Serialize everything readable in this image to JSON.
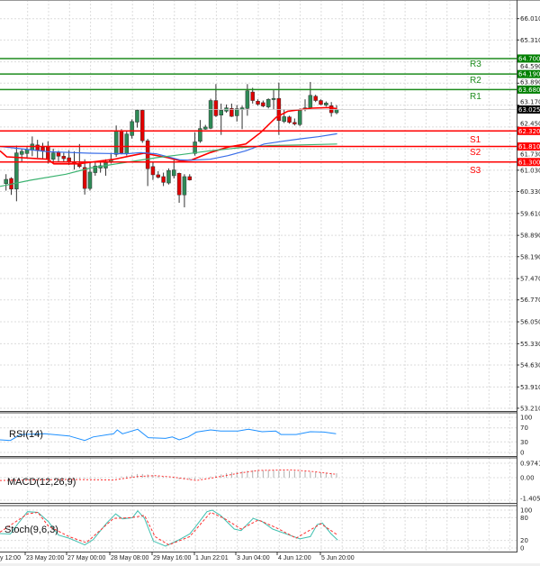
{
  "chart_data": {
    "type": "candlestick",
    "title": "",
    "x_labels": [
      "y 12:00",
      "23 May 20:00",
      "27 May 00:00",
      "28 May 08:00",
      "29 May 16:00",
      "1 Jun 22:01",
      "3 Jun 04:00",
      "4 Jun 12:00",
      "5 Jun 20:00"
    ],
    "price_axis": {
      "ylim": [
        53.21,
        66.01
      ],
      "ticks": [
        "66.010",
        "65.310",
        "64.590",
        "63.890",
        "63.170",
        "62.450",
        "61.730",
        "61.030",
        "60.330",
        "59.610",
        "58.890",
        "58.190",
        "57.470",
        "56.770",
        "56.050",
        "55.330",
        "54.630",
        "53.910",
        "53.210"
      ]
    },
    "current_price": {
      "value": 63.025,
      "label": "63.025"
    },
    "levels": [
      {
        "name": "R3",
        "value": 64.7,
        "label": "64.700",
        "color": "#1e8c1e"
      },
      {
        "name": "R2",
        "value": 64.19,
        "label": "64.190",
        "color": "#1e8c1e"
      },
      {
        "name": "R1",
        "value": 63.68,
        "label": "63.680",
        "color": "#1e8c1e"
      },
      {
        "name": "S1",
        "value": 62.32,
        "label": "62.320",
        "color": "#ff0000"
      },
      {
        "name": "S2",
        "value": 61.81,
        "label": "61.810",
        "color": "#ff0000"
      },
      {
        "name": "S3",
        "value": 61.3,
        "label": "61.300",
        "color": "#ff0000"
      }
    ],
    "candles_ohlc": [
      [
        60.59,
        60.9,
        60.36,
        60.73
      ],
      [
        60.76,
        60.8,
        60.22,
        60.41
      ],
      [
        60.41,
        61.84,
        60.01,
        61.6
      ],
      [
        61.55,
        61.74,
        61.3,
        61.65
      ],
      [
        61.58,
        61.79,
        61.44,
        61.71
      ],
      [
        61.69,
        62.14,
        61.49,
        61.89
      ],
      [
        61.86,
        62.03,
        61.44,
        61.67
      ],
      [
        61.79,
        61.93,
        61.39,
        61.65
      ],
      [
        61.82,
        61.98,
        61.25,
        61.39
      ],
      [
        61.39,
        61.74,
        61.25,
        61.6
      ],
      [
        61.62,
        61.67,
        61.3,
        61.49
      ],
      [
        61.49,
        61.6,
        61.3,
        61.41
      ],
      [
        61.44,
        61.69,
        61.2,
        61.3
      ],
      [
        61.3,
        61.65,
        61.05,
        61.25
      ],
      [
        61.22,
        61.89,
        61.1,
        61.15
      ],
      [
        61.12,
        61.39,
        60.23,
        60.43
      ],
      [
        60.43,
        61.3,
        60.36,
        60.97
      ],
      [
        60.95,
        61.3,
        60.85,
        61.17
      ],
      [
        61.1,
        61.35,
        60.95,
        61.18
      ],
      [
        61.1,
        61.39,
        60.85,
        61.28
      ],
      [
        61.3,
        61.6,
        61.25,
        61.39
      ],
      [
        61.55,
        62.5,
        61.47,
        62.31
      ],
      [
        62.31,
        62.38,
        61.55,
        61.6
      ],
      [
        61.58,
        62.33,
        61.51,
        62.22
      ],
      [
        62.17,
        62.7,
        62.07,
        62.63
      ],
      [
        62.61,
        63.03,
        62.43,
        63.0
      ],
      [
        63.0,
        63.03,
        61.93,
        62.0
      ],
      [
        62.0,
        62.06,
        60.51,
        61.08
      ],
      [
        61.15,
        61.3,
        60.71,
        60.88
      ],
      [
        60.88,
        61.0,
        60.76,
        60.8
      ],
      [
        60.82,
        60.95,
        60.51,
        60.63
      ],
      [
        60.61,
        61.09,
        60.56,
        61.02
      ],
      [
        60.85,
        61.44,
        60.76,
        61.04
      ],
      [
        60.93,
        60.95,
        59.96,
        60.22
      ],
      [
        60.22,
        60.9,
        59.81,
        60.82
      ],
      [
        60.82,
        60.9,
        60.69,
        60.71
      ],
      [
        61.58,
        62.28,
        61.51,
        61.96
      ],
      [
        61.98,
        62.68,
        61.93,
        62.4
      ],
      [
        62.38,
        62.52,
        62.36,
        62.45
      ],
      [
        62.41,
        63.38,
        62.38,
        63.32
      ],
      [
        63.32,
        63.86,
        62.78,
        62.82
      ],
      [
        62.84,
        63.22,
        62.19,
        63.0
      ],
      [
        62.97,
        63.19,
        62.92,
        63.08
      ],
      [
        63.06,
        63.22,
        62.78,
        62.8
      ],
      [
        62.82,
        63.17,
        62.63,
        63.05
      ],
      [
        63.03,
        63.15,
        62.38,
        63.08
      ],
      [
        63.06,
        63.86,
        62.82,
        63.64
      ],
      [
        63.6,
        63.74,
        63.22,
        63.32
      ],
      [
        63.3,
        63.36,
        63.15,
        63.2
      ],
      [
        63.25,
        63.32,
        63.1,
        63.14
      ],
      [
        63.11,
        63.39,
        63.06,
        63.36
      ],
      [
        63.35,
        63.66,
        63.03,
        63.39
      ],
      [
        63.39,
        63.91,
        62.19,
        62.66
      ],
      [
        62.63,
        63.03,
        62.58,
        62.79
      ],
      [
        62.78,
        62.82,
        62.56,
        62.6
      ],
      [
        62.6,
        62.73,
        62.5,
        62.55
      ],
      [
        62.53,
        63.06,
        62.48,
        63.03
      ],
      [
        63.03,
        63.36,
        62.97,
        63.08
      ],
      [
        63.08,
        63.93,
        63.05,
        63.49
      ],
      [
        63.46,
        63.51,
        63.27,
        63.32
      ],
      [
        63.32,
        63.36,
        63.17,
        63.19
      ],
      [
        63.17,
        63.29,
        63.12,
        63.24
      ],
      [
        63.15,
        63.27,
        62.79,
        62.92
      ],
      [
        62.92,
        63.17,
        62.87,
        63.02
      ]
    ],
    "moving_averages": [
      {
        "name": "MA fast",
        "color": "#ff0000",
        "points": [
          [
            -1.15,
            61.67
          ],
          [
            0.14,
            61.47
          ],
          [
            8.0,
            61.39
          ],
          [
            9.1,
            61.24
          ],
          [
            13.7,
            61.24
          ],
          [
            20.6,
            61.39
          ],
          [
            23.4,
            61.49
          ],
          [
            26.3,
            61.59
          ],
          [
            30.9,
            61.44
          ],
          [
            33.2,
            61.34
          ],
          [
            35.4,
            61.37
          ],
          [
            38.9,
            61.61
          ],
          [
            42.3,
            61.79
          ],
          [
            45.7,
            61.89
          ],
          [
            48.6,
            62.28
          ],
          [
            51.5,
            62.77
          ],
          [
            53.7,
            62.97
          ],
          [
            56.0,
            63.02
          ],
          [
            58.3,
            63.07
          ],
          [
            61.7,
            63.09
          ],
          [
            63.1,
            63.05
          ]
        ]
      },
      {
        "name": "MA medium",
        "color": "#3a6ee8",
        "points": [
          [
            -1.15,
            61.81
          ],
          [
            8.0,
            61.64
          ],
          [
            16.0,
            61.59
          ],
          [
            22.9,
            61.57
          ],
          [
            25.7,
            61.61
          ],
          [
            28.6,
            61.57
          ],
          [
            33.2,
            61.37
          ],
          [
            35.4,
            61.36
          ],
          [
            38.9,
            61.39
          ],
          [
            42.3,
            61.51
          ],
          [
            45.7,
            61.67
          ],
          [
            49.2,
            61.89
          ],
          [
            52.6,
            61.98
          ],
          [
            56.0,
            62.06
          ],
          [
            59.5,
            62.13
          ],
          [
            63.1,
            62.23
          ]
        ]
      },
      {
        "name": "MA slow",
        "color": "#3cb371",
        "points": [
          [
            -1.15,
            60.5
          ],
          [
            4.6,
            60.7
          ],
          [
            11.4,
            60.9
          ],
          [
            16.0,
            61.1
          ],
          [
            22.9,
            61.29
          ],
          [
            28.6,
            61.44
          ],
          [
            33.2,
            61.54
          ],
          [
            38.9,
            61.67
          ],
          [
            44.6,
            61.77
          ],
          [
            50.3,
            61.84
          ],
          [
            56.0,
            61.86
          ],
          [
            63.1,
            61.89
          ]
        ]
      }
    ],
    "rsi": {
      "label": "RSI(14)",
      "ylim": [
        0,
        100
      ],
      "ticks": [
        "100",
        "70",
        "30",
        "0"
      ],
      "color": "#1e90ff",
      "points": [
        [
          -1.15,
          36
        ],
        [
          0.82,
          34
        ],
        [
          2.79,
          51
        ],
        [
          7.4,
          53
        ],
        [
          12.0,
          47
        ],
        [
          15.0,
          34
        ],
        [
          16.6,
          44
        ],
        [
          20.5,
          53
        ],
        [
          21.2,
          64
        ],
        [
          22.2,
          53
        ],
        [
          25.1,
          66
        ],
        [
          27.1,
          42
        ],
        [
          30.4,
          40
        ],
        [
          31.7,
          44
        ],
        [
          33.0,
          36
        ],
        [
          34.7,
          44
        ],
        [
          36.3,
          58
        ],
        [
          39.0,
          64
        ],
        [
          40.9,
          61
        ],
        [
          44.2,
          61
        ],
        [
          46.2,
          66
        ],
        [
          48.8,
          59
        ],
        [
          51.4,
          61
        ],
        [
          52.4,
          51
        ],
        [
          55.3,
          51
        ],
        [
          58.0,
          59
        ],
        [
          60.6,
          58
        ],
        [
          62.9,
          53
        ]
      ]
    },
    "macd": {
      "label": "MACD(12,26,9)",
      "ylim": [
        -1.4051,
        0.9741
      ],
      "ticks": [
        "0.9741",
        "0.00",
        "-1.4051"
      ],
      "histogram": [
        0.02,
        0.03,
        0.04,
        0.04,
        0.03,
        0.02,
        0.01,
        0,
        -0.01,
        -0.02,
        -0.03,
        -0.04,
        -0.05,
        -0.06,
        -0.07,
        -0.07,
        -0.06,
        -0.05,
        -0.04,
        -0.02,
        0,
        0.03,
        0.08,
        0.12,
        0.2,
        0.25,
        0.25,
        0.22,
        0.18,
        0.12,
        0.06,
        0,
        -0.05,
        -0.1,
        -0.12,
        -0.14,
        -0.12,
        -0.08,
        0.0,
        0.08,
        0.15,
        0.22,
        0.3,
        0.36,
        0.4,
        0.44,
        0.47,
        0.5,
        0.5,
        0.5,
        0.5,
        0.49,
        0.48,
        0.47,
        0.46,
        0.45,
        0.44,
        0.42,
        0.4,
        0.38,
        0.36,
        0.34,
        0.32,
        0.3
      ],
      "signal": [
        [
          -1.15,
          -0.19
        ],
        [
          12.0,
          -0.12
        ],
        [
          20.5,
          -0.16
        ],
        [
          25.1,
          0.08
        ],
        [
          28.4,
          0.14
        ],
        [
          31.7,
          0.04
        ],
        [
          36.3,
          -0.19
        ],
        [
          39.6,
          0
        ],
        [
          44.8,
          0.33
        ],
        [
          48.1,
          0.49
        ],
        [
          54.0,
          0.53
        ],
        [
          58.0,
          0.43
        ],
        [
          62.9,
          0.23
        ]
      ]
    },
    "stoch": {
      "label": "Stoch(9,6,3)",
      "ylim": [
        0,
        100
      ],
      "ticks": [
        "100",
        "80",
        "20",
        "0"
      ],
      "main": [
        [
          -1.15,
          38
        ],
        [
          0.82,
          37
        ],
        [
          2.14,
          62
        ],
        [
          4.1,
          96
        ],
        [
          6.08,
          94
        ],
        [
          8.05,
          70
        ],
        [
          10.0,
          34
        ],
        [
          12.0,
          26
        ],
        [
          15.0,
          8
        ],
        [
          16.6,
          22
        ],
        [
          19.2,
          66
        ],
        [
          20.9,
          90
        ],
        [
          22.2,
          77
        ],
        [
          24.1,
          80
        ],
        [
          25.1,
          98
        ],
        [
          26.4,
          78
        ],
        [
          28.1,
          18
        ],
        [
          30.4,
          5
        ],
        [
          33.0,
          22
        ],
        [
          35.0,
          37
        ],
        [
          36.0,
          54
        ],
        [
          38.3,
          96
        ],
        [
          39.3,
          100
        ],
        [
          40.9,
          86
        ],
        [
          43.5,
          50
        ],
        [
          44.8,
          46
        ],
        [
          47.1,
          78
        ],
        [
          48.8,
          70
        ],
        [
          50.8,
          50
        ],
        [
          54.0,
          34
        ],
        [
          56.0,
          24
        ],
        [
          58.0,
          30
        ],
        [
          59.3,
          62
        ],
        [
          60.3,
          66
        ],
        [
          61.9,
          38
        ],
        [
          63.2,
          21
        ]
      ],
      "signal": [
        [
          -1.15,
          42
        ],
        [
          4.1,
          90
        ],
        [
          6.08,
          94
        ],
        [
          8.05,
          58
        ],
        [
          12.0,
          30
        ],
        [
          15.3,
          14
        ],
        [
          20.5,
          78
        ],
        [
          23.8,
          80
        ],
        [
          26.4,
          86
        ],
        [
          28.4,
          30
        ],
        [
          31.0,
          8
        ],
        [
          35.0,
          30
        ],
        [
          39.0,
          94
        ],
        [
          41.6,
          78
        ],
        [
          44.8,
          50
        ],
        [
          48.1,
          74
        ],
        [
          51.4,
          54
        ],
        [
          55.3,
          26
        ],
        [
          60.0,
          64
        ],
        [
          63.2,
          34
        ]
      ]
    },
    "colors": {
      "bull": "#2e8b57",
      "bear": "#e00000",
      "wick": "#333333",
      "grid": "#dcdcdc",
      "stoch_main": "#40c0b0",
      "stoch_signal": "#ff3030",
      "macd_signal": "#ff3030",
      "macd_hist": "#b0b0b0"
    }
  }
}
